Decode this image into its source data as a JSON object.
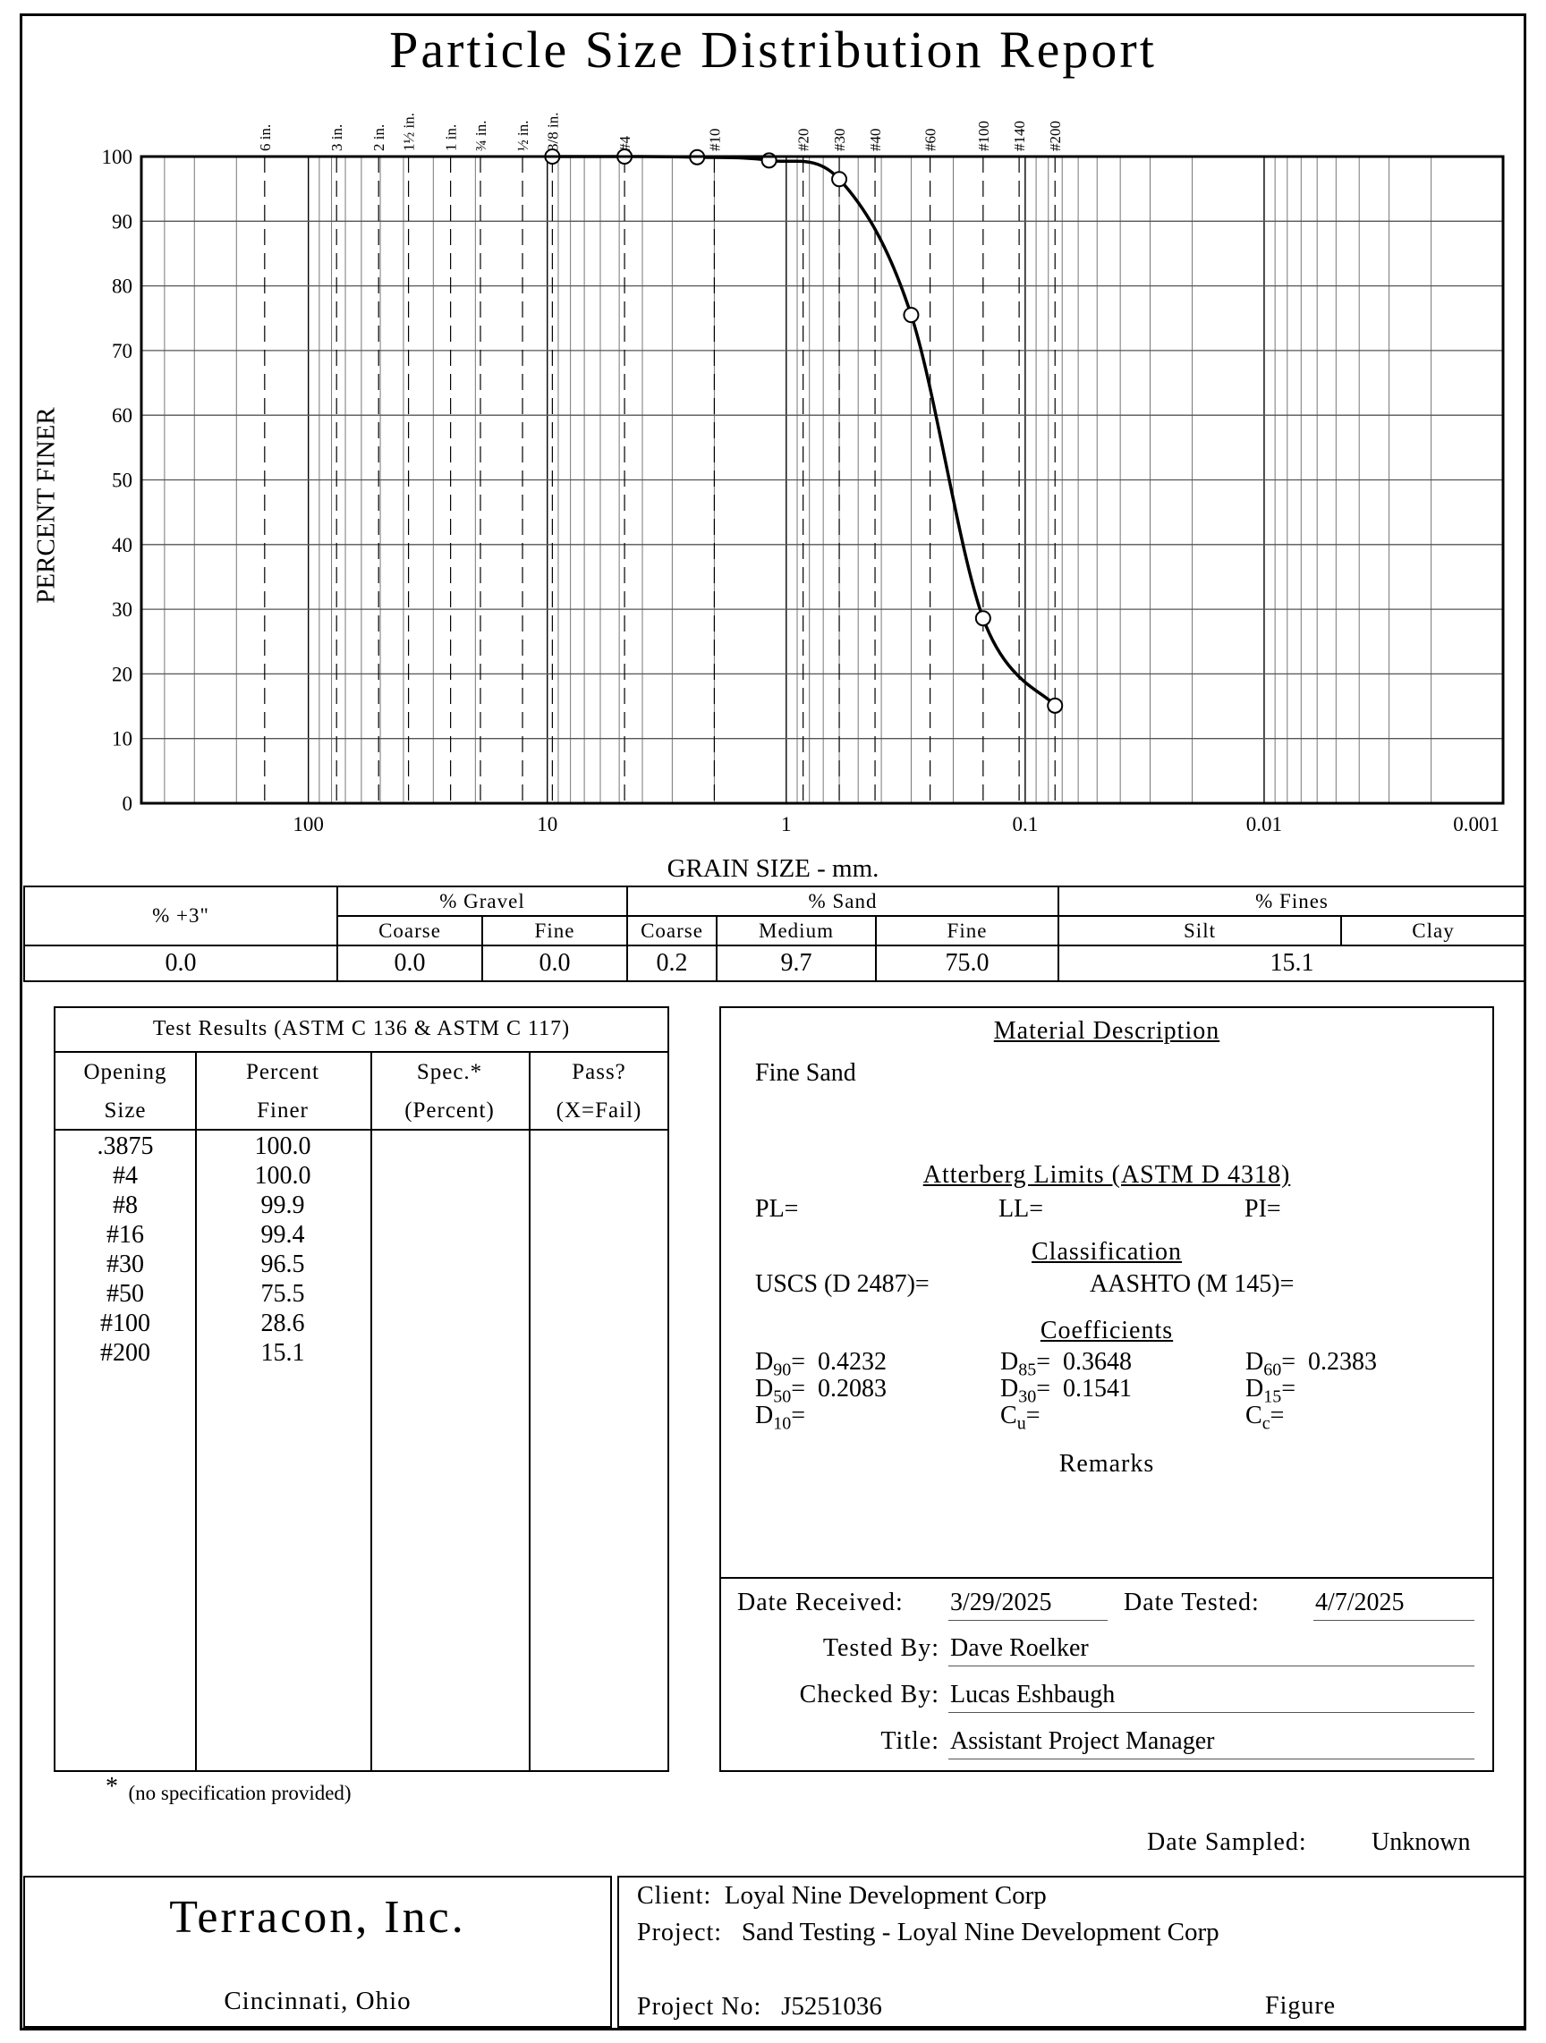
{
  "report": {
    "title": "Particle Size Distribution Report",
    "ylabel": "PERCENT FINER",
    "xlabel": "GRAIN SIZE - mm."
  },
  "chart_data": {
    "type": "line",
    "x_scale": "log",
    "x_reversed": true,
    "xlim": [
      500,
      0.001
    ],
    "ylim": [
      0,
      100
    ],
    "yticks": [
      0,
      10,
      20,
      30,
      40,
      50,
      60,
      70,
      80,
      90,
      100
    ],
    "xtick_labels": [
      {
        "v": 100,
        "label": "100"
      },
      {
        "v": 10,
        "label": "10"
      },
      {
        "v": 1,
        "label": "1"
      },
      {
        "v": 0.1,
        "label": "0.1"
      },
      {
        "v": 0.01,
        "label": "0.01"
      },
      {
        "v": 0.001,
        "label": "0.001"
      }
    ],
    "sieve_labels": [
      {
        "v": 152.4,
        "label": "6 in."
      },
      {
        "v": 76.2,
        "label": "3 in."
      },
      {
        "v": 50.8,
        "label": "2 in."
      },
      {
        "v": 38.1,
        "label": "1½ in."
      },
      {
        "v": 25.4,
        "label": "1 in."
      },
      {
        "v": 19.05,
        "label": "¾ in."
      },
      {
        "v": 12.7,
        "label": "½ in."
      },
      {
        "v": 9.525,
        "label": "3/8 in."
      },
      {
        "v": 4.75,
        "label": "#4"
      },
      {
        "v": 2.0,
        "label": "#10"
      },
      {
        "v": 0.85,
        "label": "#20"
      },
      {
        "v": 0.6,
        "label": "#30"
      },
      {
        "v": 0.425,
        "label": "#40"
      },
      {
        "v": 0.25,
        "label": "#60"
      },
      {
        "v": 0.15,
        "label": "#100"
      },
      {
        "v": 0.106,
        "label": "#140"
      },
      {
        "v": 0.075,
        "label": "#200"
      }
    ],
    "series": [
      {
        "x": [
          9.525,
          4.75,
          2.36,
          1.18,
          0.6,
          0.3,
          0.15,
          0.075
        ],
        "y": [
          100.0,
          100.0,
          99.9,
          99.4,
          96.5,
          75.5,
          28.6,
          15.1
        ]
      }
    ],
    "grid": true
  },
  "fractions": {
    "plus3_header": "% +3\"",
    "gravel_header": "% Gravel",
    "sand_header": "% Sand",
    "fines_header": "% Fines",
    "sub": {
      "gravel_coarse": "Coarse",
      "gravel_fine": "Fine",
      "sand_coarse": "Coarse",
      "sand_medium": "Medium",
      "sand_fine": "Fine",
      "silt": "Silt",
      "clay": "Clay"
    },
    "values": {
      "plus3": "0.0",
      "gravel_coarse": "0.0",
      "gravel_fine": "0.0",
      "sand_coarse": "0.2",
      "sand_medium": "9.7",
      "sand_fine": "75.0",
      "fines": "15.1"
    }
  },
  "test_results": {
    "header": "Test Results (ASTM C 136 & ASTM C 117)",
    "col1_a": "Opening",
    "col1_b": "Size",
    "col2_a": "Percent",
    "col2_b": "Finer",
    "col3_a": "Spec.*",
    "col3_b": "(Percent)",
    "col4_a": "Pass?",
    "col4_b": "(X=Fail)",
    "rows": [
      {
        "size": ".3875",
        "finer": "100.0"
      },
      {
        "size": "#4",
        "finer": "100.0"
      },
      {
        "size": "#8",
        "finer": "99.9"
      },
      {
        "size": "#16",
        "finer": "99.4"
      },
      {
        "size": "#30",
        "finer": "96.5"
      },
      {
        "size": "#50",
        "finer": "75.5"
      },
      {
        "size": "#100",
        "finer": "28.6"
      },
      {
        "size": "#200",
        "finer": "15.1"
      }
    ],
    "footnote_star": "*",
    "footnote": "(no specification provided)"
  },
  "material": {
    "header": "Material Description",
    "description": "Fine Sand",
    "atterberg_header": "Atterberg Limits (ASTM D 4318)",
    "pl": "PL=",
    "ll": "LL=",
    "pi": "PI=",
    "class_header": "Classification",
    "uscs": "USCS (D 2487)=",
    "aashto": "AASHTO (M 145)=",
    "coef_header": "Coefficients",
    "d90": "0.4232",
    "d85": "0.3648",
    "d60": "0.2383",
    "d50": "0.2083",
    "d30": "0.1541",
    "remarks": "Remarks"
  },
  "dates": {
    "received_label": "Date Received:",
    "received": "3/29/2025",
    "tested_label": "Date Tested:",
    "tested": "4/7/2025",
    "tested_by_label": "Tested By:",
    "tested_by": "Dave Roelker",
    "checked_by_label": "Checked By:",
    "checked_by": "Lucas Eshbaugh",
    "title_label": "Title:",
    "title": "Assistant Project Manager",
    "sampled_label": "Date Sampled:",
    "sampled": "Unknown"
  },
  "footer": {
    "company": "Terracon, Inc.",
    "city": "Cincinnati, Ohio",
    "client_label": "Client:",
    "client": "Loyal Nine Development Corp",
    "project_label": "Project:",
    "project": "Sand Testing - Loyal Nine Development Corp",
    "project_no_label": "Project No:",
    "project_no": "J5251036",
    "figure_label": "Figure"
  }
}
